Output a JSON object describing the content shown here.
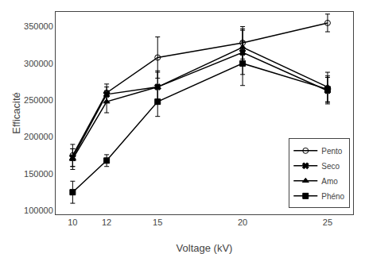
{
  "chart_data": {
    "type": "line",
    "x": [
      10,
      12,
      15,
      20,
      25
    ],
    "series": [
      {
        "name": "Pento",
        "values": [
          175000,
          260000,
          308000,
          328000,
          355000
        ],
        "yerr": [
          15000,
          12000,
          28000,
          22000,
          12000
        ],
        "marker": "circle-open"
      },
      {
        "name": "Seco",
        "values": [
          172000,
          258000,
          268000,
          315000,
          263000
        ],
        "yerr": [
          12000,
          10000,
          22000,
          30000,
          18000
        ],
        "marker": "x"
      },
      {
        "name": "Amo",
        "values": [
          170000,
          248000,
          268000,
          322000,
          268000
        ],
        "yerr": [
          14000,
          15000,
          20000,
          25000,
          20000
        ],
        "marker": "triangle-up"
      },
      {
        "name": "Phéno",
        "values": [
          125000,
          168000,
          248000,
          300000,
          265000
        ],
        "yerr": [
          15000,
          8000,
          20000,
          30000,
          18000
        ],
        "marker": "square"
      }
    ],
    "xlabel": "Voltage (kV)",
    "ylabel": "Efficacité",
    "xlim": [
      9.0,
      26.5
    ],
    "ylim": [
      95000,
      370000
    ],
    "xticks": [
      10,
      12,
      15,
      20,
      25
    ],
    "yticks": [
      100000,
      150000,
      200000,
      250000,
      300000,
      350000
    ],
    "color": "black",
    "line_style": "solid",
    "grid": false,
    "legend": "lower right"
  }
}
